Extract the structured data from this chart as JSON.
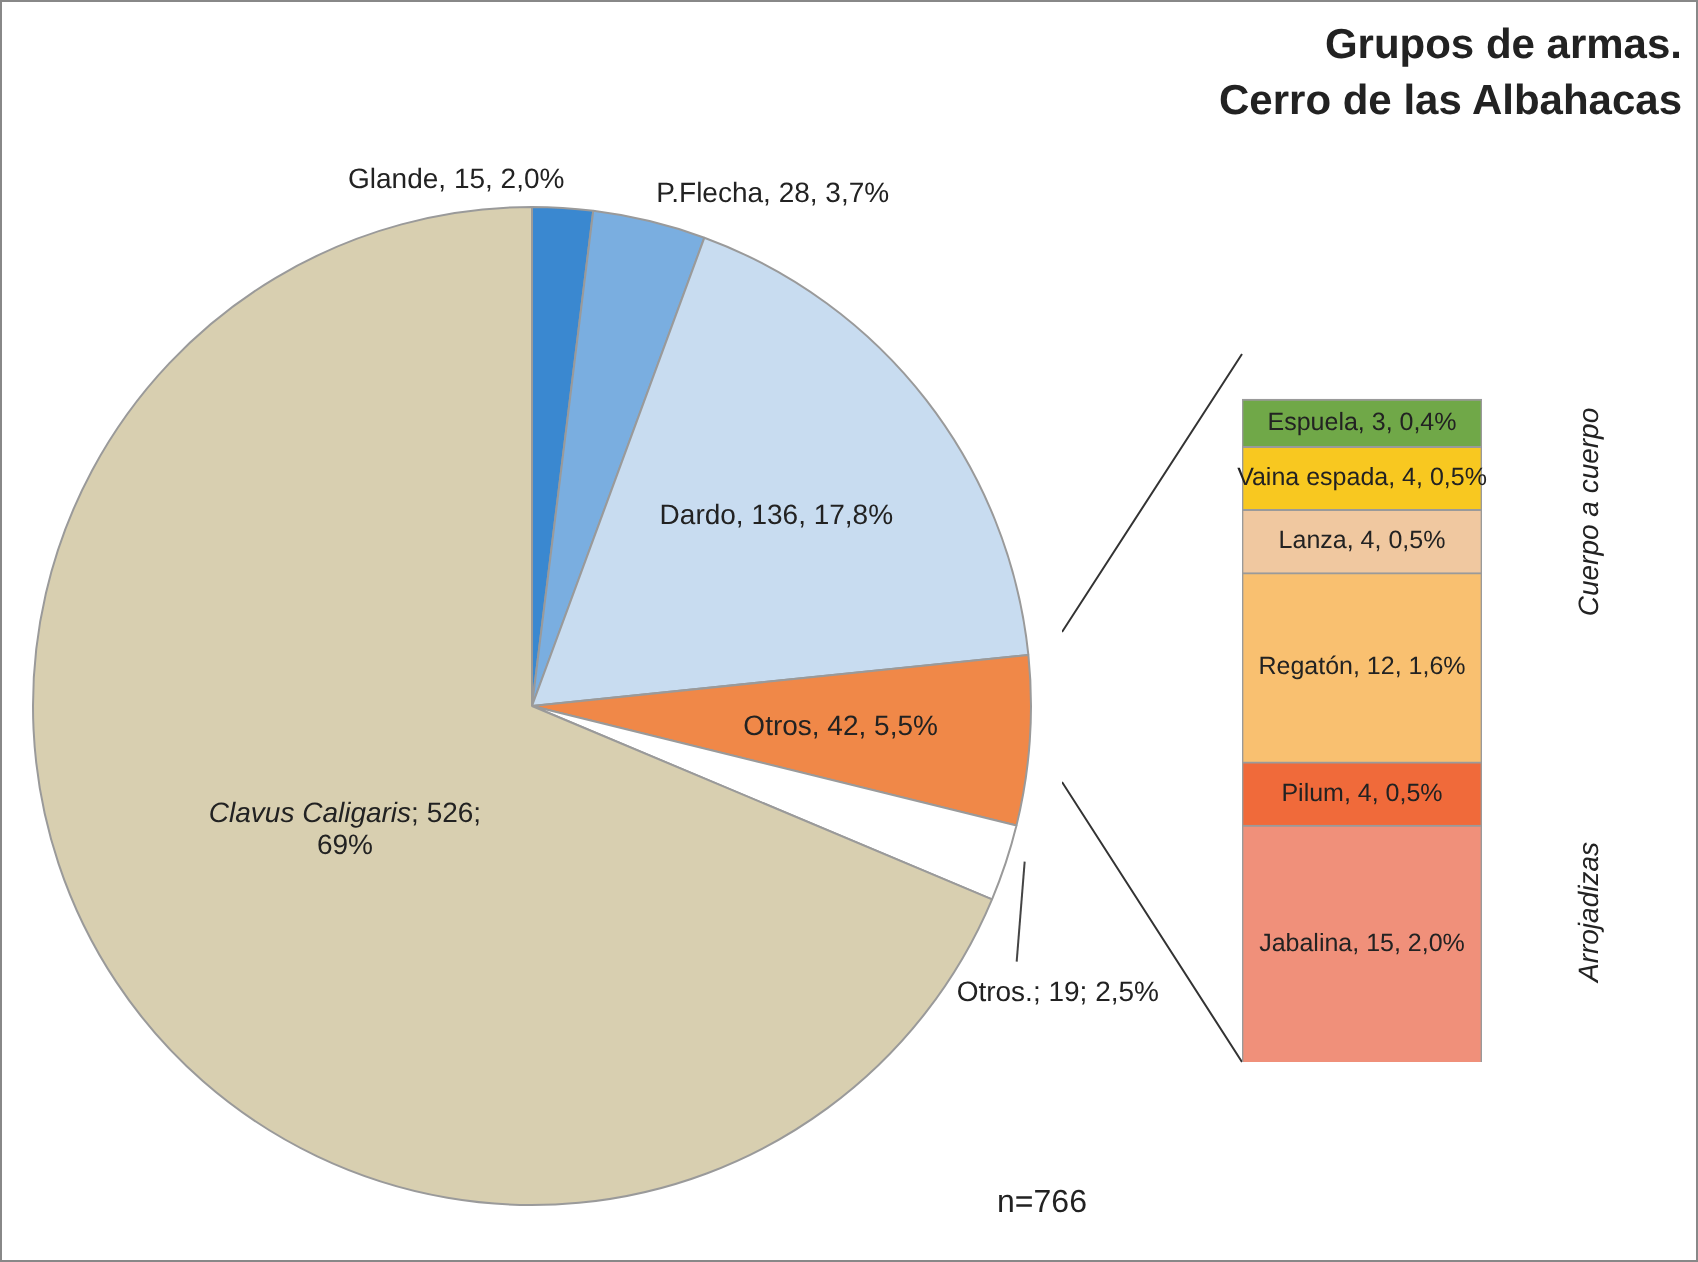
{
  "chart_data": [
    {
      "type": "pie",
      "title": "Grupos de armas.\nCerro de las Albahacas",
      "categories": [
        "Glande",
        "P.Flecha",
        "Dardo",
        "Otros",
        "Otros.",
        "Clavus Caligaris"
      ],
      "values": [
        15,
        28,
        136,
        42,
        19,
        526
      ],
      "colors": [
        "#3a88d0",
        "#7aaee0",
        "#c8dcf0",
        "#f08848",
        "#ffffff",
        "#d8cfb0"
      ],
      "value_labels": [
        ", 15, 2,0%",
        ", 28, 3,7%",
        ", 136, 17,8%",
        ", 42, 5,5%",
        "; 19; 2,5%",
        "; 526;\n69%"
      ],
      "annotations": [
        "n=766"
      ]
    },
    {
      "type": "bar",
      "stacked": true,
      "categories": [
        null
      ],
      "series": [
        {
          "name": "Jabalina",
          "color": "#f0907a",
          "values": [
            15
          ],
          "value_labels": [
            ", 15, 2,0%"
          ]
        },
        {
          "name": "Pilum",
          "color": "#f06a3a",
          "values": [
            4
          ],
          "value_labels": [
            ", 4, 0,5%"
          ]
        },
        {
          "name": "Regatón",
          "color": "#f9c070",
          "values": [
            12
          ],
          "value_labels": [
            ", 12, 1,6%"
          ]
        },
        {
          "name": "Lanza",
          "color": "#f0c8a0",
          "values": [
            4
          ],
          "value_labels": [
            ", 4, 0,5%"
          ]
        },
        {
          "name": "Vaina espada",
          "color": "#f8c820",
          "values": [
            4
          ],
          "value_labels": [
            ", 4, 0,5%"
          ]
        },
        {
          "name": "Espuela",
          "color": "#70a848",
          "values": [
            3
          ],
          "value_labels": [
            ", 3, 0,4%"
          ]
        }
      ],
      "annotations": [
        "Cuerpo a cuerpo",
        "Arrojadizas"
      ]
    }
  ]
}
